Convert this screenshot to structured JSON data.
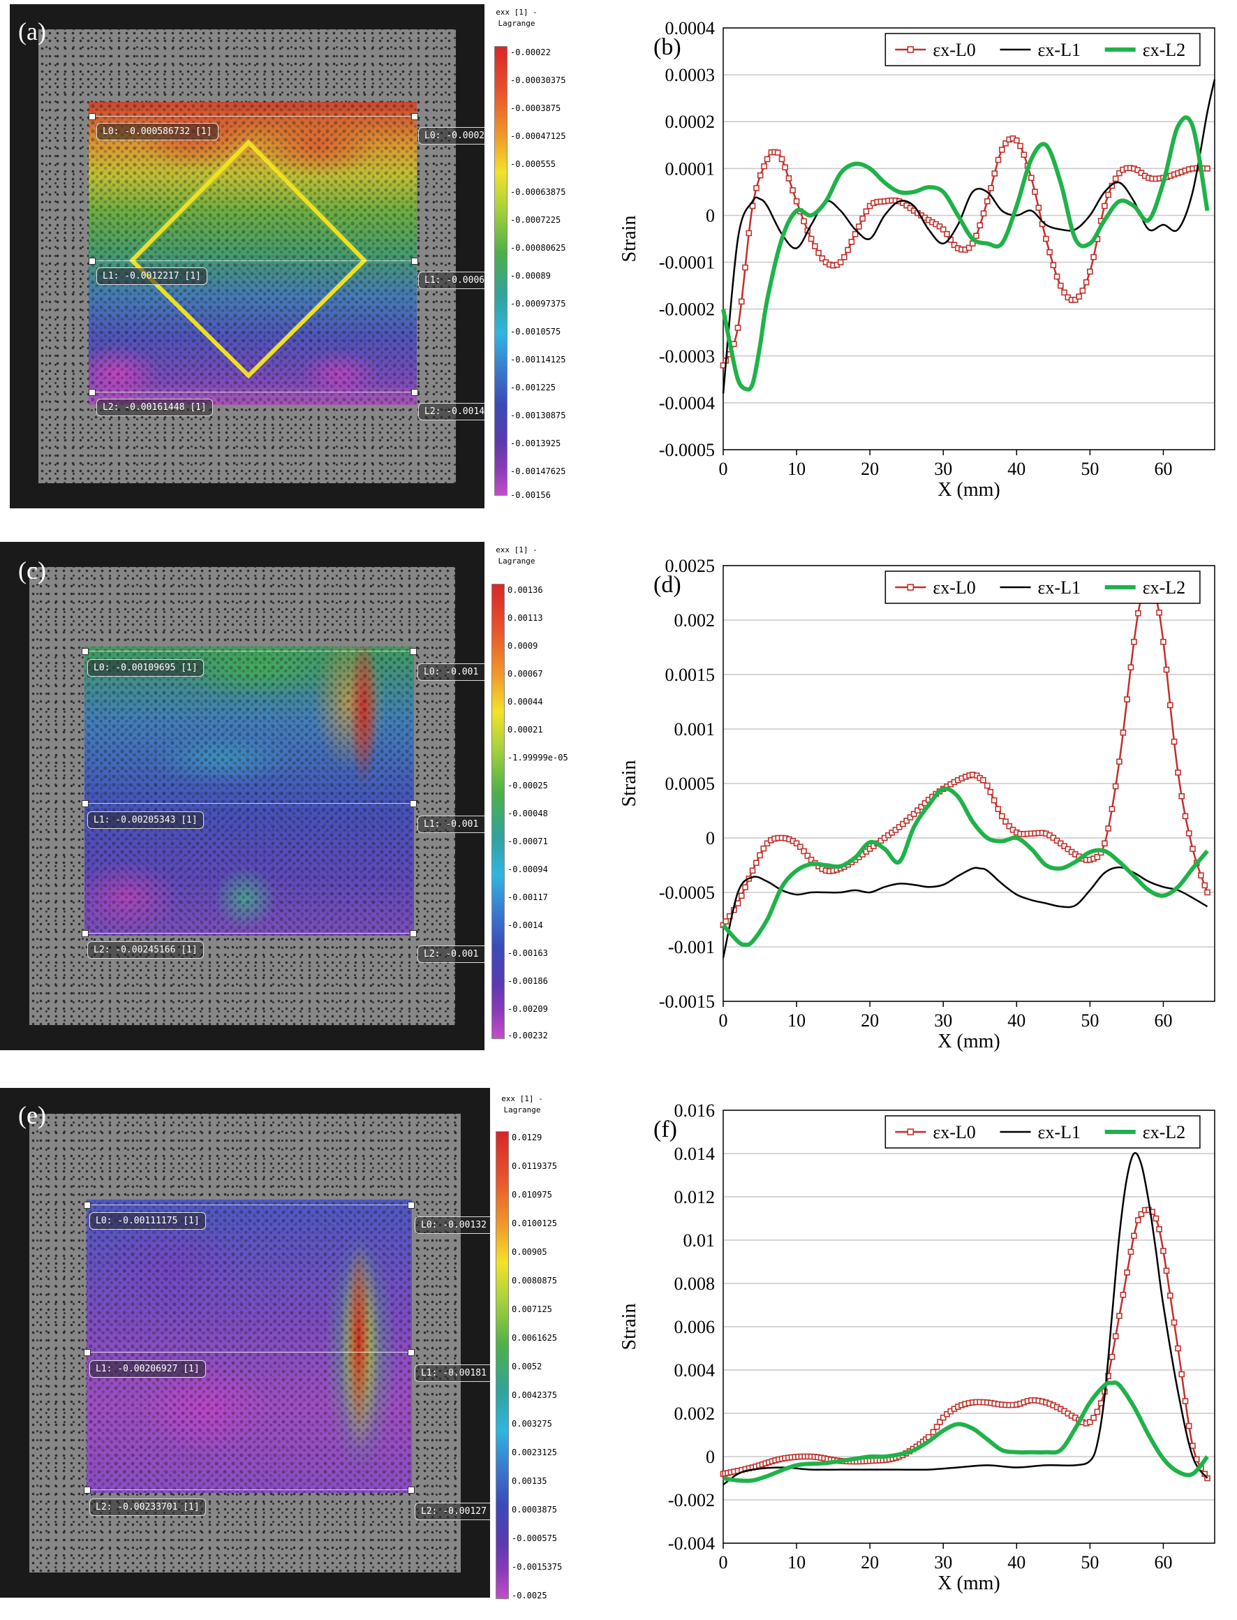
{
  "panels": {
    "a": {
      "letter": "(a)",
      "labels_left": [
        "L0: -0.000586732 [1]",
        "L1: -0.0012217 [1]",
        "L2: -0.00161448 [1]"
      ],
      "labels_right": [
        "L0: -0.0002",
        "L1: -0.0006",
        "L2: -0.0014"
      ],
      "colorbar": {
        "title": [
          "exx [1] -",
          "Lagrange"
        ],
        "ticks": [
          "-0.00022",
          "-0.00030375",
          "-0.0003875",
          "-0.00047125",
          "-0.000555",
          "-0.00063875",
          "-0.0007225",
          "-0.00080625",
          "-0.00089",
          "-0.00097375",
          "-0.0010575",
          "-0.00114125",
          "-0.001225",
          "-0.00130875",
          "-0.0013925",
          "-0.00147625",
          "-0.00156"
        ]
      }
    },
    "c": {
      "letter": "(c)",
      "labels_left": [
        "L0: -0.00109695 [1]",
        "L1: -0.00205343 [1]",
        "L2: -0.00245166 [1]"
      ],
      "labels_right": [
        "L0: -0.001",
        "L1: -0.001",
        "L2: -0.001"
      ],
      "colorbar": {
        "title": [
          "exx [1] -",
          "Lagrange"
        ],
        "ticks": [
          "0.00136",
          "0.00113",
          "0.0009",
          "0.00067",
          "0.00044",
          "0.00021",
          "-1.99999e-05",
          "-0.00025",
          "-0.00048",
          "-0.00071",
          "-0.00094",
          "-0.00117",
          "-0.0014",
          "-0.00163",
          "-0.00186",
          "-0.00209",
          "-0.00232"
        ]
      }
    },
    "e": {
      "letter": "(e)",
      "labels_left": [
        "L0: -0.00111175 [1]",
        "L1: -0.00206927 [1]",
        "L2: -0.00233701 [1]"
      ],
      "labels_right": [
        "L0: -0.00132",
        "L1: -0.00181",
        "L2: -0.00127"
      ],
      "colorbar": {
        "title": [
          "exx [1] -",
          "Lagrange"
        ],
        "ticks": [
          "0.0129",
          "0.0119375",
          "0.010975",
          "0.0100125",
          "0.00905",
          "0.0080875",
          "0.007125",
          "0.0061625",
          "0.0052",
          "0.0042375",
          "0.003275",
          "0.0023125",
          "0.00135",
          "0.0003875",
          "-0.000575",
          "-0.0015375",
          "-0.0025"
        ]
      }
    }
  },
  "colors": {
    "L0": "#c0302a",
    "L1": "#000000",
    "L2": "#1fb24a",
    "diamond": "#f0e020"
  },
  "chart_data": [
    {
      "id": "b",
      "letter": "(b)",
      "type": "line",
      "xlabel": "X (mm)",
      "ylabel": "Strain",
      "xlim": [
        0,
        67
      ],
      "ylim": [
        -0.0005,
        0.0004
      ],
      "xticks": [
        0,
        10,
        20,
        30,
        40,
        50,
        60
      ],
      "yticks": [
        "0.0004",
        "0.0003",
        "0.0002",
        "0.0001",
        "0",
        "-0.0001",
        "-0.0002",
        "-0.0003",
        "-0.0004",
        "-0.0005"
      ],
      "ytick_values": [
        0.0004,
        0.0003,
        0.0002,
        0.0001,
        0,
        -0.0001,
        -0.0002,
        -0.0003,
        -0.0004,
        -0.0005
      ],
      "legend": [
        "εx-L0",
        "εx-L1",
        "εx-L2"
      ],
      "series": [
        {
          "name": "εx-L0",
          "x": [
            0,
            2,
            4,
            6,
            7,
            8,
            10,
            12,
            14,
            16,
            18,
            20,
            22,
            24,
            26,
            28,
            30,
            32,
            34,
            36,
            38,
            40,
            42,
            44,
            46,
            48,
            50,
            52,
            54,
            56,
            58,
            60,
            62,
            64,
            66
          ],
          "y": [
            -0.00032,
            -0.00024,
            2e-05,
            0.00012,
            0.000135,
            0.00012,
            3e-05,
            -5e-05,
            -0.0001,
            -0.0001,
            -4e-05,
            2e-05,
            3e-05,
            3e-05,
            1e-05,
            -1e-05,
            -3e-05,
            -7e-05,
            -6e-05,
            3e-05,
            0.00014,
            0.00016,
            8e-05,
            -5e-05,
            -0.00015,
            -0.00018,
            -0.00012,
            2e-05,
            9e-05,
            0.0001,
            8e-05,
            8e-05,
            9e-05,
            0.0001,
            0.0001
          ]
        },
        {
          "name": "εx-L1",
          "x": [
            0,
            2,
            4,
            5,
            6,
            8,
            10,
            12,
            14,
            16,
            18,
            20,
            22,
            24,
            26,
            28,
            30,
            32,
            34,
            36,
            38,
            40,
            42,
            44,
            46,
            48,
            50,
            52,
            54,
            56,
            58,
            60,
            62,
            64,
            66,
            67
          ],
          "y": [
            -0.00038,
            -5e-05,
            3e-05,
            3.5e-05,
            2e-05,
            -4e-05,
            -7e-05,
            -2e-05,
            3e-05,
            1e-05,
            -3e-05,
            -5e-05,
            0.0,
            3e-05,
            2e-05,
            -3e-05,
            -6e-05,
            -2e-05,
            5e-05,
            5e-05,
            1e-05,
            0.0,
            1e-05,
            -2e-05,
            -3e-05,
            -3e-05,
            0.0,
            5e-05,
            7e-05,
            3e-05,
            -3e-05,
            -2e-05,
            -3e-05,
            5e-05,
            0.00022,
            0.00029
          ]
        },
        {
          "name": "εx-L2",
          "x": [
            0,
            1,
            2,
            3,
            4,
            5,
            6,
            8,
            10,
            12,
            14,
            16,
            18,
            20,
            22,
            24,
            26,
            28,
            30,
            32,
            34,
            36,
            38,
            40,
            42,
            44,
            46,
            48,
            50,
            52,
            54,
            56,
            58,
            60,
            62,
            64,
            66
          ],
          "y": [
            -0.0002,
            -0.00028,
            -0.00035,
            -0.00037,
            -0.00036,
            -0.00028,
            -0.00018,
            -5e-05,
            1e-05,
            0.0,
            3e-05,
            9e-05,
            0.00011,
            0.0001,
            7e-05,
            5e-05,
            5e-05,
            6e-05,
            5e-05,
            0.0,
            -5e-05,
            -6e-05,
            -6e-05,
            2e-05,
            0.00012,
            0.00015,
            7e-05,
            -5e-05,
            -6e-05,
            -1e-05,
            3e-05,
            2e-05,
            -1e-05,
            7e-05,
            0.00019,
            0.00019,
            1e-05
          ]
        }
      ]
    },
    {
      "id": "d",
      "letter": "(d)",
      "type": "line",
      "xlabel": "X (mm)",
      "ylabel": "Strain",
      "xlim": [
        0,
        67
      ],
      "ylim": [
        -0.0015,
        0.0025
      ],
      "xticks": [
        0,
        10,
        20,
        30,
        40,
        50,
        60
      ],
      "yticks": [
        "0.0025",
        "0.002",
        "0.0015",
        "0.001",
        "0.0005",
        "0",
        "-0.0005",
        "-0.001",
        "-0.0015"
      ],
      "ytick_values": [
        0.0025,
        0.002,
        0.0015,
        0.001,
        0.0005,
        0,
        -0.0005,
        -0.001,
        -0.0015
      ],
      "legend": [
        "εx-L0",
        "εx-L1",
        "εx-L2"
      ],
      "series": [
        {
          "name": "εx-L0",
          "x": [
            0,
            2,
            4,
            6,
            8,
            10,
            12,
            14,
            16,
            18,
            20,
            22,
            24,
            26,
            28,
            30,
            32,
            34,
            35,
            36,
            38,
            40,
            42,
            44,
            46,
            48,
            50,
            52,
            54,
            56,
            57,
            58,
            59,
            60,
            62,
            64,
            66
          ],
          "y": [
            -0.0008,
            -0.0006,
            -0.0003,
            -5e-05,
            0.0,
            -5e-05,
            -0.0002,
            -0.0003,
            -0.00028,
            -0.0002,
            -0.0001,
            0.0,
            0.0001,
            0.00022,
            0.00035,
            0.00045,
            0.00053,
            0.00058,
            0.00055,
            0.00048,
            0.0002,
            5e-05,
            4e-05,
            4e-05,
            -5e-05,
            -0.00015,
            -0.0002,
            -5e-05,
            0.0007,
            0.0018,
            0.0022,
            0.0023,
            0.0022,
            0.0018,
            0.0006,
            -0.0001,
            -0.0005
          ]
        },
        {
          "name": "εx-L1",
          "x": [
            0,
            2,
            4,
            6,
            8,
            10,
            12,
            14,
            16,
            18,
            20,
            22,
            24,
            26,
            28,
            30,
            32,
            34,
            35,
            36,
            38,
            40,
            42,
            44,
            46,
            48,
            50,
            52,
            54,
            56,
            58,
            60,
            62,
            64,
            66
          ],
          "y": [
            -0.0011,
            -0.0005,
            -0.00036,
            -0.0004,
            -0.00048,
            -0.00052,
            -0.0005,
            -0.0005,
            -0.0005,
            -0.00048,
            -0.0005,
            -0.00045,
            -0.00042,
            -0.00043,
            -0.00045,
            -0.00043,
            -0.00035,
            -0.00028,
            -0.00028,
            -0.0003,
            -0.00042,
            -0.00052,
            -0.00057,
            -0.0006,
            -0.00063,
            -0.00062,
            -0.00048,
            -0.00032,
            -0.00027,
            -0.00032,
            -0.0004,
            -0.00045,
            -0.00048,
            -0.00055,
            -0.00063
          ]
        },
        {
          "name": "εx-L2",
          "x": [
            0,
            2,
            3,
            4,
            6,
            8,
            10,
            12,
            14,
            16,
            18,
            20,
            22,
            24,
            26,
            28,
            30,
            32,
            34,
            36,
            38,
            40,
            42,
            44,
            46,
            48,
            50,
            52,
            54,
            56,
            58,
            60,
            62,
            64,
            66
          ],
          "y": [
            -0.0008,
            -0.00095,
            -0.00098,
            -0.00095,
            -0.00075,
            -0.00045,
            -0.0003,
            -0.00024,
            -0.00025,
            -0.00026,
            -0.00018,
            -4e-05,
            -0.0001,
            -0.00022,
            0.0001,
            0.0003,
            0.00045,
            0.00038,
            0.00015,
            0.0,
            -3e-05,
            0.0,
            -0.0001,
            -0.00025,
            -0.00028,
            -0.00022,
            -0.00013,
            -0.00012,
            -0.00022,
            -0.00035,
            -0.00048,
            -0.00053,
            -0.00045,
            -0.00028,
            -0.00012
          ]
        }
      ]
    },
    {
      "id": "f",
      "letter": "(f)",
      "type": "line",
      "xlabel": "X (mm)",
      "ylabel": "Strain",
      "xlim": [
        0,
        67
      ],
      "ylim": [
        -0.004,
        0.016
      ],
      "xticks": [
        0,
        10,
        20,
        30,
        40,
        50,
        60
      ],
      "yticks": [
        "0.016",
        "0.014",
        "0.012",
        "0.01",
        "0.008",
        "0.006",
        "0.004",
        "0.002",
        "0",
        "-0.002",
        "-0.004"
      ],
      "ytick_values": [
        0.016,
        0.014,
        0.012,
        0.01,
        0.008,
        0.006,
        0.004,
        0.002,
        0,
        -0.002,
        -0.004
      ],
      "legend": [
        "εx-L0",
        "εx-L1",
        "εx-L2"
      ],
      "series": [
        {
          "name": "εx-L0",
          "x": [
            0,
            4,
            8,
            12,
            16,
            20,
            24,
            28,
            30,
            32,
            34,
            36,
            38,
            40,
            42,
            44,
            46,
            48,
            50,
            52,
            54,
            56,
            57,
            58,
            59,
            60,
            62,
            64,
            66
          ],
          "y": [
            -0.0008,
            -0.0005,
            -0.0001,
            0.0,
            -0.0002,
            -0.0002,
            0.0,
            0.0009,
            0.0018,
            0.0023,
            0.0025,
            0.0025,
            0.0024,
            0.0024,
            0.0026,
            0.0025,
            0.0022,
            0.0018,
            0.0016,
            0.003,
            0.0065,
            0.0102,
            0.0112,
            0.0114,
            0.011,
            0.0095,
            0.005,
            0.0005,
            -0.001
          ]
        },
        {
          "name": "εx-L1",
          "x": [
            0,
            2,
            4,
            8,
            12,
            16,
            20,
            24,
            28,
            32,
            36,
            40,
            44,
            48,
            50,
            51,
            52,
            53,
            54,
            55,
            56,
            57,
            58,
            59,
            60,
            62,
            64,
            66
          ],
          "y": [
            -0.0013,
            -0.0008,
            -0.0006,
            -0.0005,
            -0.0006,
            -0.0006,
            -0.0006,
            -0.0006,
            -0.0006,
            -0.0005,
            -0.0004,
            -0.0005,
            -0.0004,
            -0.0004,
            -0.0002,
            0.0006,
            0.0028,
            0.0065,
            0.0102,
            0.0128,
            0.014,
            0.0135,
            0.0118,
            0.0095,
            0.007,
            0.003,
            0.0,
            -0.001
          ]
        },
        {
          "name": "εx-L2",
          "x": [
            0,
            2,
            4,
            6,
            10,
            14,
            18,
            20,
            22,
            24,
            26,
            28,
            30,
            32,
            34,
            36,
            38,
            40,
            42,
            44,
            46,
            48,
            50,
            52,
            53,
            54,
            56,
            58,
            60,
            62,
            64,
            66
          ],
          "y": [
            -0.001,
            -0.0011,
            -0.0011,
            -0.0009,
            -0.0004,
            -0.0003,
            -0.0001,
            0.0,
            0.0,
            0.0001,
            0.0003,
            0.0007,
            0.0012,
            0.0015,
            0.0013,
            0.0008,
            0.0003,
            0.0002,
            0.0002,
            0.0002,
            0.0003,
            0.0013,
            0.0025,
            0.0033,
            0.0034,
            0.0033,
            0.0023,
            0.001,
            -0.0001,
            -0.0007,
            -0.0008,
            0.0
          ]
        }
      ]
    }
  ]
}
